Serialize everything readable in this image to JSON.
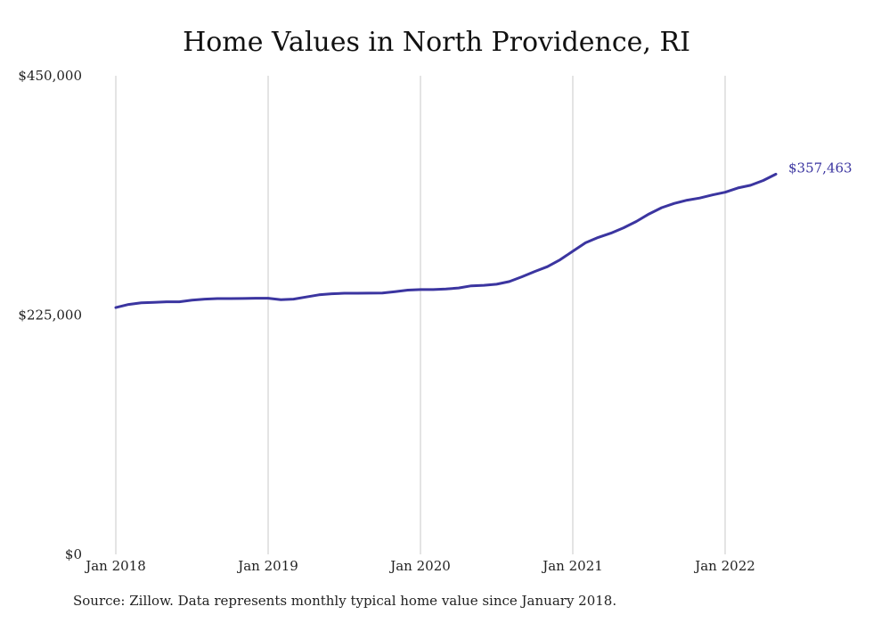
{
  "chart_data": {
    "type": "line",
    "title": "Home Values in North Providence, RI",
    "xlabel": "",
    "ylabel": "",
    "x_ticks": [
      "Jan 2018",
      "Jan 2019",
      "Jan 2020",
      "Jan 2021",
      "Jan 2022"
    ],
    "y_ticks": [
      "$0",
      "$225,000",
      "$450,000"
    ],
    "ylim": [
      0,
      450000
    ],
    "xlim": [
      "2018-01",
      "2022-05"
    ],
    "grid": "vertical",
    "line_color": "#3b35a0",
    "end_label": "$357,463",
    "series": [
      {
        "x": [
          "2018-01",
          "2018-02",
          "2018-03",
          "2018-04",
          "2018-05",
          "2018-06",
          "2018-07",
          "2018-08",
          "2018-09",
          "2018-10",
          "2018-11",
          "2018-12",
          "2019-01",
          "2019-02",
          "2019-03",
          "2019-04",
          "2019-05",
          "2019-06",
          "2019-07",
          "2019-08",
          "2019-09",
          "2019-10",
          "2019-11",
          "2019-12",
          "2020-01",
          "2020-02",
          "2020-03",
          "2020-04",
          "2020-05",
          "2020-06",
          "2020-07",
          "2020-08",
          "2020-09",
          "2020-10",
          "2020-11",
          "2020-12",
          "2021-01",
          "2021-02",
          "2021-03",
          "2021-04",
          "2021-05",
          "2021-06",
          "2021-07",
          "2021-08",
          "2021-09",
          "2021-10",
          "2021-11",
          "2021-12",
          "2022-01",
          "2022-02",
          "2022-03",
          "2022-04",
          "2022-05"
        ],
        "values": [
          232000,
          235000,
          236500,
          237000,
          237500,
          237500,
          239000,
          240000,
          240500,
          240500,
          240600,
          240800,
          240800,
          239500,
          240000,
          242000,
          244000,
          245000,
          245500,
          245500,
          245600,
          245800,
          247000,
          248500,
          249000,
          249000,
          249500,
          250500,
          252500,
          253000,
          254000,
          256500,
          261000,
          266000,
          270500,
          277000,
          285000,
          293000,
          298000,
          302000,
          307000,
          313000,
          320000,
          326000,
          330000,
          333000,
          335000,
          338000,
          340500,
          344500,
          347000,
          351500,
          357463
        ]
      }
    ]
  },
  "source_note": "Source: Zillow. Data represents monthly typical home value since January 2018."
}
